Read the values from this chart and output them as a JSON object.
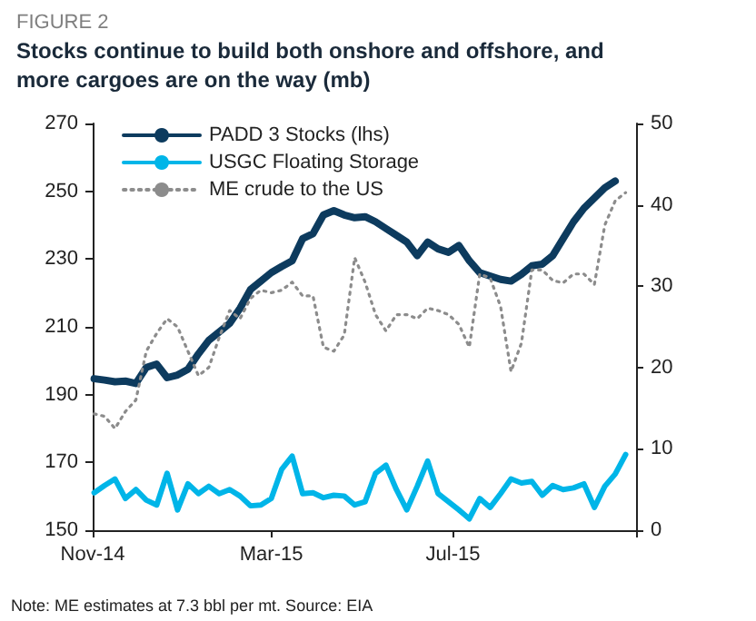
{
  "chart_data": {
    "type": "line",
    "subtitle": "FIGURE 2",
    "title": "Stocks continue to build both onshore and offshore, and\nmore cargoes are on the way (mb)",
    "annotations": [
      "Note: ME estimates at 7.3 bbl per mt. Source: EIA"
    ],
    "x": [
      "2014-11-02",
      "2014-11-09",
      "2014-11-16",
      "2014-11-23",
      "2014-11-30",
      "2014-12-07",
      "2014-12-14",
      "2014-12-21",
      "2014-12-28",
      "2015-01-04",
      "2015-01-11",
      "2015-01-18",
      "2015-01-25",
      "2015-02-01",
      "2015-02-08",
      "2015-02-15",
      "2015-02-22",
      "2015-03-01",
      "2015-03-08",
      "2015-03-15",
      "2015-03-22",
      "2015-03-29",
      "2015-04-05",
      "2015-04-12",
      "2015-04-19",
      "2015-04-26",
      "2015-05-03",
      "2015-05-10",
      "2015-05-17",
      "2015-05-24",
      "2015-05-31",
      "2015-06-07",
      "2015-06-14",
      "2015-06-21",
      "2015-06-28",
      "2015-07-05",
      "2015-07-12",
      "2015-07-19",
      "2015-07-26",
      "2015-08-02",
      "2015-08-09",
      "2015-08-16",
      "2015-08-23",
      "2015-08-30",
      "2015-09-06",
      "2015-09-13",
      "2015-09-20",
      "2015-09-27",
      "2015-10-04",
      "2015-10-11",
      "2015-10-18",
      "2015-10-25"
    ],
    "xlim": [
      "2014-11-01",
      "2015-11-01"
    ],
    "xticks": [
      {
        "value": "2014-11-01",
        "label": "Nov-14"
      },
      {
        "value": "2015-03-01",
        "label": "Mar-15"
      },
      {
        "value": "2015-07-01",
        "label": "Jul-15"
      },
      {
        "value": "2015-11-01",
        "label": null
      }
    ],
    "ylim": [
      150,
      270
    ],
    "yticks": [
      150,
      170,
      190,
      210,
      230,
      250,
      270
    ],
    "y2lim": [
      0,
      50
    ],
    "y2ticks": [
      0,
      10,
      20,
      30,
      40,
      50
    ],
    "grid": false,
    "legend": "top left",
    "marker": "none",
    "series": [
      {
        "name": "PADD 3 Stocks (lhs)",
        "color": "#0d3b5e",
        "line_style": "solid",
        "values": [
          194.7,
          194.3,
          193.8,
          194,
          193.3,
          198,
          199,
          195,
          195.8,
          197.5,
          202,
          206,
          208.5,
          211,
          215.5,
          221,
          223.5,
          226,
          227.8,
          229.5,
          236,
          237.5,
          243,
          244.3,
          243,
          242.2,
          242.5,
          241,
          239,
          237,
          235,
          231,
          235,
          233,
          232,
          234,
          229.5,
          226,
          225,
          224,
          223.5,
          225.5,
          228,
          228.5,
          231,
          236,
          241,
          245,
          248,
          251,
          253,
          null
        ]
      },
      {
        "name": "USGC Floating Storage",
        "color": "#00b5e8",
        "line_style": "solid",
        "axis": "y2",
        "values": [
          4.6,
          5.5,
          6.3,
          3.9,
          5.0,
          3.7,
          3.1,
          7.0,
          2.5,
          5.7,
          4.5,
          5.4,
          4.5,
          5.0,
          4.2,
          3.0,
          3.1,
          3.9,
          7.5,
          9.1,
          4.5,
          4.6,
          4.0,
          4.3,
          4.2,
          3.1,
          3.5,
          7.0,
          8.0,
          5.0,
          2.5,
          5.4,
          8.5,
          4.5,
          3.5,
          2.5,
          1.4,
          3.9,
          2.8,
          4.5,
          6.3,
          5.8,
          6.0,
          4.3,
          5.5,
          5.0,
          5.2,
          5.7,
          2.8,
          5.4,
          6.9,
          9.3
        ]
      },
      {
        "name": "ME crude to the US",
        "color": "#8c8c8c",
        "line_style": "dotted",
        "axis": "y2",
        "values": [
          14.3,
          14.0,
          12.5,
          14.6,
          16,
          22,
          24.2,
          26,
          25,
          22,
          19,
          20,
          23.7,
          27,
          26,
          28.5,
          29.5,
          29.2,
          29.5,
          30.5,
          28.8,
          28.8,
          22.5,
          22,
          24,
          33.5,
          30.5,
          26.5,
          24.5,
          26.5,
          26.5,
          26,
          27.3,
          27,
          26.5,
          25.3,
          22.5,
          31.5,
          31,
          27.5,
          19.5,
          23,
          32,
          32,
          30.7,
          30.4,
          31.5,
          31.5,
          30.2,
          37.5,
          40.5,
          41.5
        ]
      }
    ]
  }
}
